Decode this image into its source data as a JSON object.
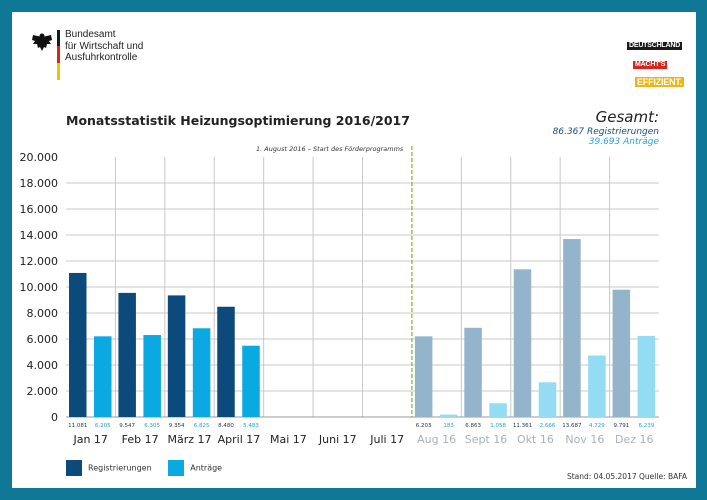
{
  "header": {
    "org_lines": [
      "Bundesamt",
      "für Wirtschaft und",
      "Ausfuhrkontrolle"
    ],
    "campaign_badge": [
      "DEUTSCHLAND",
      "MACHT'S",
      "EFFIZIENT."
    ]
  },
  "totals": {
    "heading": "Gesamt:",
    "registrations": "86.367 Registrierungen",
    "applications": "39.693 Anträge"
  },
  "footer": {
    "source": "Stand: 04.05.2017  Quelle: BAFA"
  },
  "colors": {
    "frame": "#0f7896",
    "reg_current": "#0c4a7b",
    "app_current": "#0aa9e2",
    "reg_previous": "#93b4cb",
    "app_previous": "#94dbf4",
    "start_line": "#7ab52f"
  },
  "chart_data": {
    "type": "bar",
    "title": "Monatsstatistik Heizungsoptimierung 2016/2017",
    "xlabel": "",
    "ylabel": "",
    "ylim": [
      0,
      20000
    ],
    "yticks": [
      0,
      2000,
      4000,
      6000,
      8000,
      10000,
      12000,
      14000,
      16000,
      18000,
      20000
    ],
    "ytick_labels": [
      "0",
      "2.000",
      "4.000",
      "6.000",
      "8.000",
      "10.000",
      "12.000",
      "14.000",
      "16.000",
      "18.000",
      "20.000"
    ],
    "grid": true,
    "legend_position": "bottom-left",
    "categories": [
      "Jan 17",
      "Feb 17",
      "März 17",
      "April 17",
      "Mai 17",
      "Juni 17",
      "Juli 17",
      "Aug 16",
      "Sept 16",
      "Okt 16",
      "Nov 16",
      "Dez 16"
    ],
    "category_faded": [
      false,
      false,
      false,
      false,
      false,
      false,
      false,
      true,
      true,
      true,
      true,
      true
    ],
    "series": [
      {
        "name": "Registrierungen",
        "values": [
          11081,
          9547,
          9354,
          8480,
          null,
          null,
          null,
          6203,
          6863,
          11361,
          13687,
          9791
        ],
        "labels": [
          "11.081",
          "9.547",
          "9.354",
          "8.480",
          "",
          "",
          "",
          "6.203",
          "6.863",
          "11.361",
          "13.687",
          "9.791"
        ]
      },
      {
        "name": "Anträge",
        "values": [
          6205,
          6305,
          6825,
          5483,
          null,
          null,
          null,
          183,
          1058,
          2666,
          4729,
          6239
        ],
        "labels": [
          "6.205",
          "6.305",
          "6.825",
          "5.483",
          "",
          "",
          "",
          "183",
          "1.058",
          "2.666",
          "4.729",
          "6.239"
        ]
      }
    ],
    "annotation": {
      "text": "1. August 2016 – Start des Förderprogramms",
      "before_category": "Aug 16"
    }
  }
}
